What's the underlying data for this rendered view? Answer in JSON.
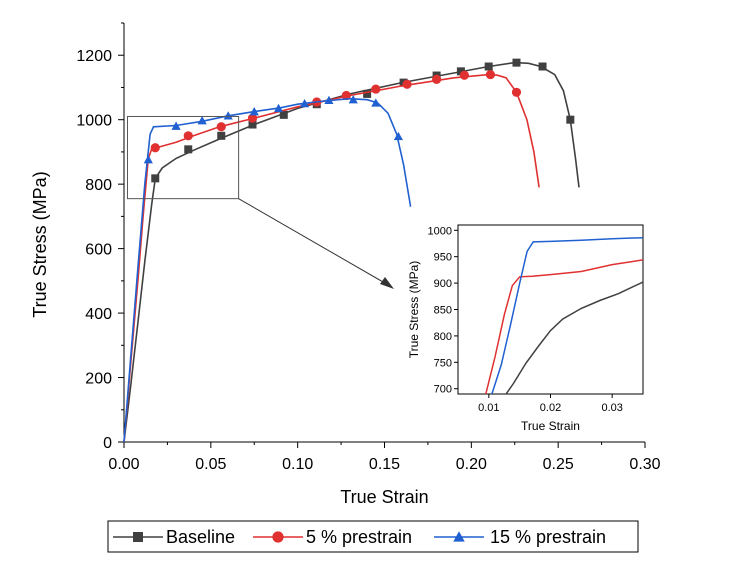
{
  "chart_data": {
    "type": "line",
    "title": "",
    "xlabel": "True Strain",
    "ylabel": "True Stress (MPa)",
    "xlim": [
      0,
      0.3
    ],
    "ylim": [
      0,
      1300
    ],
    "xticks": [
      "0.00",
      "0.05",
      "0.10",
      "0.15",
      "0.20",
      "0.25",
      "0.30"
    ],
    "yticks": [
      "0",
      "200",
      "400",
      "600",
      "800",
      "1000",
      "1200"
    ],
    "legend_position": "bottom",
    "series": [
      {
        "name": "Baseline",
        "color": "#404040",
        "marker": "square",
        "line": [
          [
            0,
            0
          ],
          [
            0.004,
            180
          ],
          [
            0.008,
            370
          ],
          [
            0.012,
            560
          ],
          [
            0.016,
            740
          ],
          [
            0.018,
            818
          ],
          [
            0.022,
            850
          ],
          [
            0.03,
            880
          ],
          [
            0.04,
            905
          ],
          [
            0.055,
            940
          ],
          [
            0.075,
            985
          ],
          [
            0.1,
            1035
          ],
          [
            0.13,
            1080
          ],
          [
            0.16,
            1115
          ],
          [
            0.19,
            1145
          ],
          [
            0.21,
            1165
          ],
          [
            0.225,
            1177
          ],
          [
            0.233,
            1175
          ],
          [
            0.24,
            1165
          ],
          [
            0.248,
            1140
          ],
          [
            0.253,
            1090
          ],
          [
            0.257,
            1000
          ],
          [
            0.26,
            880
          ],
          [
            0.262,
            790
          ]
        ],
        "markers": [
          [
            0.018,
            818
          ],
          [
            0.037,
            908
          ],
          [
            0.056,
            950
          ],
          [
            0.074,
            985
          ],
          [
            0.092,
            1015
          ],
          [
            0.111,
            1048
          ],
          [
            0.14,
            1080
          ],
          [
            0.161,
            1115
          ],
          [
            0.18,
            1137
          ],
          [
            0.194,
            1150
          ],
          [
            0.21,
            1165
          ],
          [
            0.226,
            1177
          ],
          [
            0.241,
            1165
          ],
          [
            0.257,
            1000
          ]
        ]
      },
      {
        "name": "5 % prestrain",
        "color": "#e03030",
        "marker": "circle",
        "line": [
          [
            0,
            0
          ],
          [
            0.004,
            250
          ],
          [
            0.008,
            500
          ],
          [
            0.011,
            700
          ],
          [
            0.014,
            880
          ],
          [
            0.016,
            910
          ],
          [
            0.02,
            915
          ],
          [
            0.03,
            930
          ],
          [
            0.04,
            950
          ],
          [
            0.055,
            978
          ],
          [
            0.075,
            1005
          ],
          [
            0.1,
            1040
          ],
          [
            0.13,
            1075
          ],
          [
            0.16,
            1105
          ],
          [
            0.19,
            1130
          ],
          [
            0.21,
            1140
          ],
          [
            0.215,
            1138
          ],
          [
            0.22,
            1130
          ],
          [
            0.226,
            1085
          ],
          [
            0.232,
            1000
          ],
          [
            0.236,
            900
          ],
          [
            0.239,
            790
          ]
        ],
        "markers": [
          [
            0.018,
            913
          ],
          [
            0.037,
            950
          ],
          [
            0.056,
            978
          ],
          [
            0.074,
            1005
          ],
          [
            0.111,
            1055
          ],
          [
            0.128,
            1075
          ],
          [
            0.145,
            1095
          ],
          [
            0.163,
            1110
          ],
          [
            0.18,
            1125
          ],
          [
            0.196,
            1138
          ],
          [
            0.211,
            1140
          ],
          [
            0.226,
            1085
          ]
        ]
      },
      {
        "name": "15 % prestrain",
        "color": "#2060d0",
        "marker": "triangle",
        "line": [
          [
            0,
            0
          ],
          [
            0.004,
            270
          ],
          [
            0.008,
            540
          ],
          [
            0.012,
            800
          ],
          [
            0.015,
            955
          ],
          [
            0.017,
            978
          ],
          [
            0.03,
            982
          ],
          [
            0.045,
            995
          ],
          [
            0.06,
            1012
          ],
          [
            0.075,
            1025
          ],
          [
            0.09,
            1037
          ],
          [
            0.1,
            1048
          ],
          [
            0.115,
            1058
          ],
          [
            0.13,
            1065
          ],
          [
            0.14,
            1062
          ],
          [
            0.146,
            1052
          ],
          [
            0.152,
            1020
          ],
          [
            0.157,
            955
          ],
          [
            0.161,
            860
          ],
          [
            0.165,
            730
          ]
        ],
        "markers": [
          [
            0.014,
            876
          ],
          [
            0.03,
            980
          ],
          [
            0.045,
            997
          ],
          [
            0.06,
            1012
          ],
          [
            0.075,
            1025
          ],
          [
            0.089,
            1035
          ],
          [
            0.104,
            1050
          ],
          [
            0.118,
            1060
          ],
          [
            0.132,
            1062
          ],
          [
            0.145,
            1052
          ],
          [
            0.158,
            948
          ]
        ]
      }
    ],
    "inset": {
      "xlabel": "True Strain",
      "ylabel": "True Stress (MPa)",
      "xlim": [
        0.005,
        0.035
      ],
      "ylim": [
        690,
        1010
      ],
      "xticks": [
        "0.01",
        "0.02",
        "0.03"
      ],
      "yticks": [
        "700",
        "750",
        "800",
        "850",
        "900",
        "950",
        "1000"
      ],
      "series": [
        {
          "name": "Baseline",
          "color": "#404040",
          "points": [
            [
              0.0128,
              690
            ],
            [
              0.014,
              710
            ],
            [
              0.016,
              748
            ],
            [
              0.018,
              780
            ],
            [
              0.02,
              810
            ],
            [
              0.022,
              832
            ],
            [
              0.025,
              852
            ],
            [
              0.028,
              867
            ],
            [
              0.031,
              880
            ],
            [
              0.035,
              902
            ]
          ]
        },
        {
          "name": "5 % prestrain",
          "color": "#e03030",
          "points": [
            [
              0.0095,
              690
            ],
            [
              0.011,
              760
            ],
            [
              0.0125,
              840
            ],
            [
              0.0138,
              895
            ],
            [
              0.015,
              912
            ],
            [
              0.017,
              913
            ],
            [
              0.02,
              916
            ],
            [
              0.025,
              922
            ],
            [
              0.03,
              935
            ],
            [
              0.035,
              944
            ]
          ]
        },
        {
          "name": "15 % prestrain",
          "color": "#2060d0",
          "points": [
            [
              0.0105,
              690
            ],
            [
              0.012,
              745
            ],
            [
              0.0135,
              820
            ],
            [
              0.015,
              900
            ],
            [
              0.0162,
              960
            ],
            [
              0.0172,
              978
            ],
            [
              0.02,
              979
            ],
            [
              0.025,
              981
            ],
            [
              0.03,
              984
            ],
            [
              0.035,
              986
            ]
          ]
        }
      ]
    }
  }
}
